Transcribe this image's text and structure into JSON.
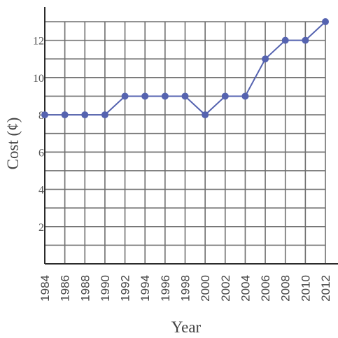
{
  "chart_data": {
    "type": "line",
    "title": "",
    "xlabel": "Year",
    "ylabel": "Cost (¢)",
    "x": [
      1984,
      1986,
      1988,
      1990,
      1992,
      1994,
      1996,
      1998,
      2000,
      2002,
      2004,
      2006,
      2008,
      2010,
      2012
    ],
    "series": [
      {
        "values": [
          8,
          8,
          8,
          8,
          9,
          9,
          9,
          9,
          8,
          9,
          9,
          11,
          12,
          12,
          13
        ]
      }
    ],
    "xlim": [
      1984,
      2013
    ],
    "ylim": [
      0,
      14
    ],
    "x_ticks": [
      "1984",
      "1986",
      "1988",
      "1990",
      "1992",
      "1994",
      "1996",
      "1998",
      "2000",
      "2002",
      "2004",
      "2006",
      "2008",
      "2010",
      "2012"
    ],
    "y_ticks": [
      "2",
      "4",
      "6",
      "8",
      "10",
      "12"
    ],
    "grid": true,
    "line_color": "#5563b0",
    "grid_color": "#6f6f6f",
    "axis_color": "#2b2b2b"
  }
}
